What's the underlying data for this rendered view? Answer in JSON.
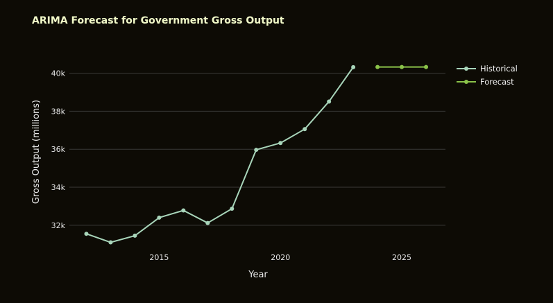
{
  "chart_data": {
    "type": "line",
    "title": "ARIMA Forecast for Government Gross Output",
    "xlabel": "Year",
    "ylabel": "Gross Output (millions)",
    "xlim": [
      2011.3,
      2026.8
    ],
    "ylim": [
      30900,
      41300
    ],
    "x_ticks": [
      2015,
      2020,
      2025
    ],
    "x_tick_labels": [
      "2015",
      "2020",
      "2025"
    ],
    "y_ticks": [
      32000,
      34000,
      36000,
      38000,
      40000
    ],
    "y_tick_labels": [
      "32k",
      "34k",
      "36k",
      "38k",
      "40k"
    ],
    "grid": "horizontal",
    "legend_position": "top-right",
    "series": [
      {
        "name": "Historical",
        "color": "#a8d5ba",
        "x": [
          2012,
          2013,
          2014,
          2015,
          2016,
          2017,
          2018,
          2019,
          2020,
          2021,
          2022,
          2023
        ],
        "values": [
          31550,
          31100,
          31450,
          32400,
          32780,
          32120,
          32870,
          35970,
          36330,
          37060,
          38510,
          40320
        ]
      },
      {
        "name": "Forecast",
        "color": "#8bc34a",
        "x": [
          2024,
          2025,
          2026
        ],
        "values": [
          40330,
          40330,
          40330
        ]
      }
    ]
  }
}
